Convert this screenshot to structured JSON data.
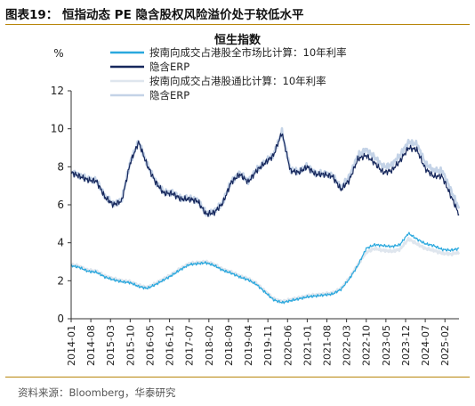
{
  "figure": {
    "title": "图表19： 恒指动态 PE 隐含股权风险溢价处于较低水平",
    "source": "资料来源：Bloomberg，华泰研究",
    "colors": {
      "rule": "#b8860b"
    }
  },
  "chart_data": {
    "type": "line",
    "title": "恒生指数",
    "ylabel": "%",
    "ylim": [
      0,
      12
    ],
    "yticks": [
      0,
      2,
      4,
      6,
      8,
      10,
      12
    ],
    "x_range": [
      "2014-01",
      "2025-07"
    ],
    "xticks": [
      "2014-01",
      "2014-08",
      "2015-03",
      "2015-10",
      "2016-05",
      "2016-12",
      "2017-07",
      "2018-02",
      "2018-09",
      "2019-04",
      "2019-11",
      "2020-06",
      "2021-01",
      "2021-08",
      "2022-03",
      "2022-10",
      "2023-05",
      "2023-12",
      "2024-07",
      "2025-02"
    ],
    "grid": false,
    "legend": "top-center",
    "series": [
      {
        "name": "按南向成交占港股全市场比计算：10年利率",
        "role": "rate",
        "color": "#29a8de",
        "x": [
          "2014-01",
          "2014-04",
          "2014-07",
          "2014-10",
          "2015-01",
          "2015-04",
          "2015-07",
          "2015-10",
          "2016-01",
          "2016-04",
          "2016-07",
          "2016-10",
          "2017-01",
          "2017-04",
          "2017-07",
          "2017-10",
          "2018-01",
          "2018-04",
          "2018-07",
          "2018-10",
          "2019-01",
          "2019-04",
          "2019-07",
          "2019-10",
          "2020-01",
          "2020-04",
          "2020-07",
          "2020-10",
          "2021-01",
          "2021-04",
          "2021-07",
          "2021-10",
          "2022-01",
          "2022-04",
          "2022-07",
          "2022-10",
          "2023-01",
          "2023-04",
          "2023-07",
          "2023-10",
          "2024-01",
          "2024-04",
          "2024-07",
          "2024-10",
          "2025-01",
          "2025-04",
          "2025-07"
        ],
        "values": [
          2.8,
          2.7,
          2.5,
          2.45,
          2.2,
          2.05,
          1.95,
          1.9,
          1.7,
          1.6,
          1.8,
          2.05,
          2.3,
          2.6,
          2.85,
          2.9,
          2.95,
          2.8,
          2.55,
          2.4,
          2.2,
          2.05,
          1.8,
          1.4,
          1.0,
          0.85,
          0.95,
          1.05,
          1.15,
          1.2,
          1.25,
          1.3,
          1.55,
          2.1,
          2.8,
          3.7,
          3.9,
          3.85,
          3.8,
          3.9,
          4.5,
          4.2,
          3.95,
          3.85,
          3.65,
          3.6,
          3.7
        ]
      },
      {
        "name": "隐含ERP",
        "role": "erp",
        "color": "#16275c",
        "x": [
          "2014-01",
          "2014-04",
          "2014-07",
          "2014-10",
          "2015-01",
          "2015-04",
          "2015-07",
          "2015-10",
          "2016-01",
          "2016-04",
          "2016-07",
          "2016-10",
          "2017-01",
          "2017-04",
          "2017-07",
          "2017-10",
          "2018-01",
          "2018-04",
          "2018-07",
          "2018-10",
          "2019-01",
          "2019-04",
          "2019-07",
          "2019-10",
          "2020-01",
          "2020-04",
          "2020-07",
          "2020-10",
          "2021-01",
          "2021-04",
          "2021-07",
          "2021-10",
          "2022-01",
          "2022-04",
          "2022-07",
          "2022-10",
          "2023-01",
          "2023-04",
          "2023-07",
          "2023-10",
          "2024-01",
          "2024-04",
          "2024-07",
          "2024-10",
          "2025-01",
          "2025-04",
          "2025-07"
        ],
        "values": [
          7.7,
          7.5,
          7.3,
          7.25,
          6.4,
          6.0,
          6.2,
          8.2,
          9.3,
          8.1,
          7.2,
          6.6,
          6.6,
          6.3,
          6.3,
          6.2,
          5.5,
          5.6,
          6.1,
          7.2,
          7.6,
          7.2,
          7.8,
          8.2,
          8.6,
          9.8,
          7.8,
          7.7,
          8.0,
          7.6,
          7.6,
          7.5,
          6.8,
          7.3,
          8.4,
          8.6,
          8.2,
          7.7,
          7.8,
          8.3,
          9.0,
          8.9,
          7.9,
          7.5,
          7.5,
          6.5,
          5.5
        ]
      },
      {
        "name": "按南向成交占港股通比计算：10年利率",
        "role": "rate",
        "color": "#dfe6ee",
        "x": [
          "2014-01",
          "2014-04",
          "2014-07",
          "2014-10",
          "2015-01",
          "2015-04",
          "2015-07",
          "2015-10",
          "2016-01",
          "2016-04",
          "2016-07",
          "2016-10",
          "2017-01",
          "2017-04",
          "2017-07",
          "2017-10",
          "2018-01",
          "2018-04",
          "2018-07",
          "2018-10",
          "2019-01",
          "2019-04",
          "2019-07",
          "2019-10",
          "2020-01",
          "2020-04",
          "2020-07",
          "2020-10",
          "2021-01",
          "2021-04",
          "2021-07",
          "2021-10",
          "2022-01",
          "2022-04",
          "2022-07",
          "2022-10",
          "2023-01",
          "2023-04",
          "2023-07",
          "2023-10",
          "2024-01",
          "2024-04",
          "2024-07",
          "2024-10",
          "2025-01",
          "2025-04",
          "2025-07"
        ],
        "values": [
          2.85,
          2.75,
          2.55,
          2.5,
          2.25,
          2.1,
          2.0,
          1.95,
          1.75,
          1.65,
          1.85,
          2.1,
          2.35,
          2.65,
          2.9,
          2.95,
          3.0,
          2.85,
          2.6,
          2.45,
          2.25,
          2.1,
          1.85,
          1.45,
          1.05,
          0.9,
          1.0,
          1.1,
          1.2,
          1.25,
          1.3,
          1.35,
          1.6,
          2.15,
          2.85,
          3.5,
          3.7,
          3.6,
          3.55,
          3.65,
          4.2,
          3.95,
          3.7,
          3.6,
          3.45,
          3.4,
          3.5
        ]
      },
      {
        "name": "隐含ERP",
        "role": "erp",
        "color": "#c4d3e7",
        "x": [
          "2014-01",
          "2014-04",
          "2014-07",
          "2014-10",
          "2015-01",
          "2015-04",
          "2015-07",
          "2015-10",
          "2016-01",
          "2016-04",
          "2016-07",
          "2016-10",
          "2017-01",
          "2017-04",
          "2017-07",
          "2017-10",
          "2018-01",
          "2018-04",
          "2018-07",
          "2018-10",
          "2019-01",
          "2019-04",
          "2019-07",
          "2019-10",
          "2020-01",
          "2020-04",
          "2020-07",
          "2020-10",
          "2021-01",
          "2021-04",
          "2021-07",
          "2021-10",
          "2022-01",
          "2022-04",
          "2022-07",
          "2022-10",
          "2023-01",
          "2023-04",
          "2023-07",
          "2023-10",
          "2024-01",
          "2024-04",
          "2024-07",
          "2024-10",
          "2025-01",
          "2025-04",
          "2025-07"
        ],
        "values": [
          7.75,
          7.55,
          7.35,
          7.3,
          6.45,
          6.05,
          6.25,
          8.25,
          9.35,
          8.15,
          7.25,
          6.65,
          6.65,
          6.35,
          6.35,
          6.25,
          5.55,
          5.65,
          6.15,
          7.25,
          7.65,
          7.25,
          7.85,
          8.25,
          8.65,
          9.85,
          7.85,
          7.75,
          8.05,
          7.65,
          7.65,
          7.55,
          6.9,
          7.5,
          8.6,
          8.9,
          8.5,
          8.0,
          8.1,
          8.6,
          9.3,
          9.2,
          8.2,
          7.8,
          7.8,
          6.8,
          5.8
        ]
      }
    ]
  }
}
